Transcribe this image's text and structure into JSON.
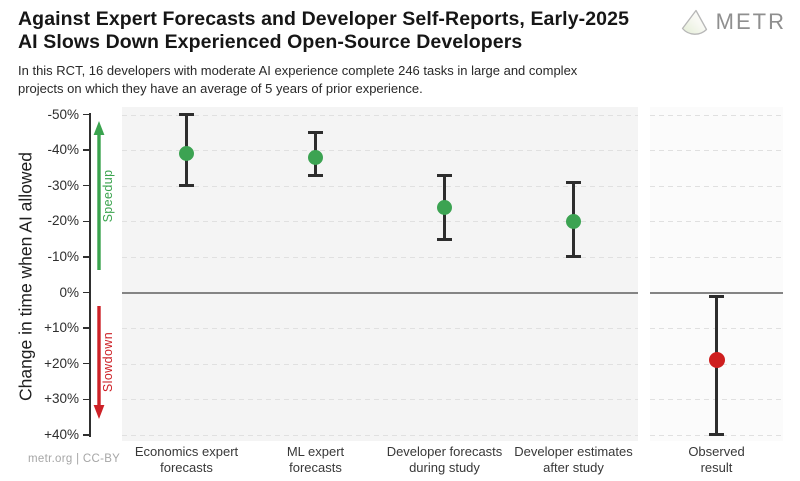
{
  "header": {
    "title_lines": [
      "Against Expert Forecasts and Developer Self-Reports, Early-2025",
      "AI Slows Down Experienced Open-Source Developers"
    ],
    "subtitle_lines": [
      "In this RCT, 16 developers with moderate AI experience complete 246 tasks in large and complex",
      "projects on which they have an average of 5 years of prior experience."
    ],
    "brand_name": "METR"
  },
  "footer": {
    "credit": "metr.org | CC-BY"
  },
  "chart_data": {
    "type": "scatter",
    "title": "Against Expert Forecasts and Developer Self-Reports, Early-2025 AI Slows Down Experienced Open-Source Developers",
    "ylabel": "Change in time when AI allowed",
    "y_axis_direction": "negative (speedup) at top, positive (slowdown) at bottom",
    "ylim": [
      -52,
      42
    ],
    "grid": true,
    "yticks": [
      {
        "label": "-50%",
        "value": -50
      },
      {
        "label": "-40%",
        "value": -40
      },
      {
        "label": "-30%",
        "value": -30
      },
      {
        "label": "-20%",
        "value": -20
      },
      {
        "label": "-10%",
        "value": -10
      },
      {
        "label": "0%",
        "value": 0
      },
      {
        "label": "+10%",
        "value": 10
      },
      {
        "label": "+20%",
        "value": 20
      },
      {
        "label": "+30%",
        "value": 30
      },
      {
        "label": "+40%",
        "value": 40
      }
    ],
    "speedup_label": "Speedup",
    "slowdown_label": "Slowdown",
    "points": [
      {
        "label_line1": "Economics expert",
        "label_line2": "forecasts",
        "value": -39,
        "ci_low": -50,
        "ci_high": -30,
        "group": "forecast",
        "panel": "left"
      },
      {
        "label_line1": "ML expert",
        "label_line2": "forecasts",
        "value": -38,
        "ci_low": -45,
        "ci_high": -33,
        "group": "forecast",
        "panel": "left"
      },
      {
        "label_line1": "Developer forecasts",
        "label_line2": "during study",
        "value": -24,
        "ci_low": -33,
        "ci_high": -15,
        "group": "forecast",
        "panel": "left"
      },
      {
        "label_line1": "Developer estimates",
        "label_line2": "after study",
        "value": -20,
        "ci_low": -31,
        "ci_high": -10,
        "group": "forecast",
        "panel": "left"
      },
      {
        "label_line1": "Observed",
        "label_line2": "result",
        "value": 19,
        "ci_low": 1,
        "ci_high": 40,
        "group": "observed",
        "panel": "right"
      }
    ],
    "colors": {
      "forecast_point": "#3ca352",
      "observed_point": "#ce1e1e",
      "speedup_arrow": "#3aa34e",
      "slowdown_arrow": "#cd2127",
      "error_bar": "#2d2d2d",
      "zero_line": "#848484",
      "panel_bg": "#f4f4f4",
      "right_panel_bg": "#fbfbfb"
    }
  }
}
